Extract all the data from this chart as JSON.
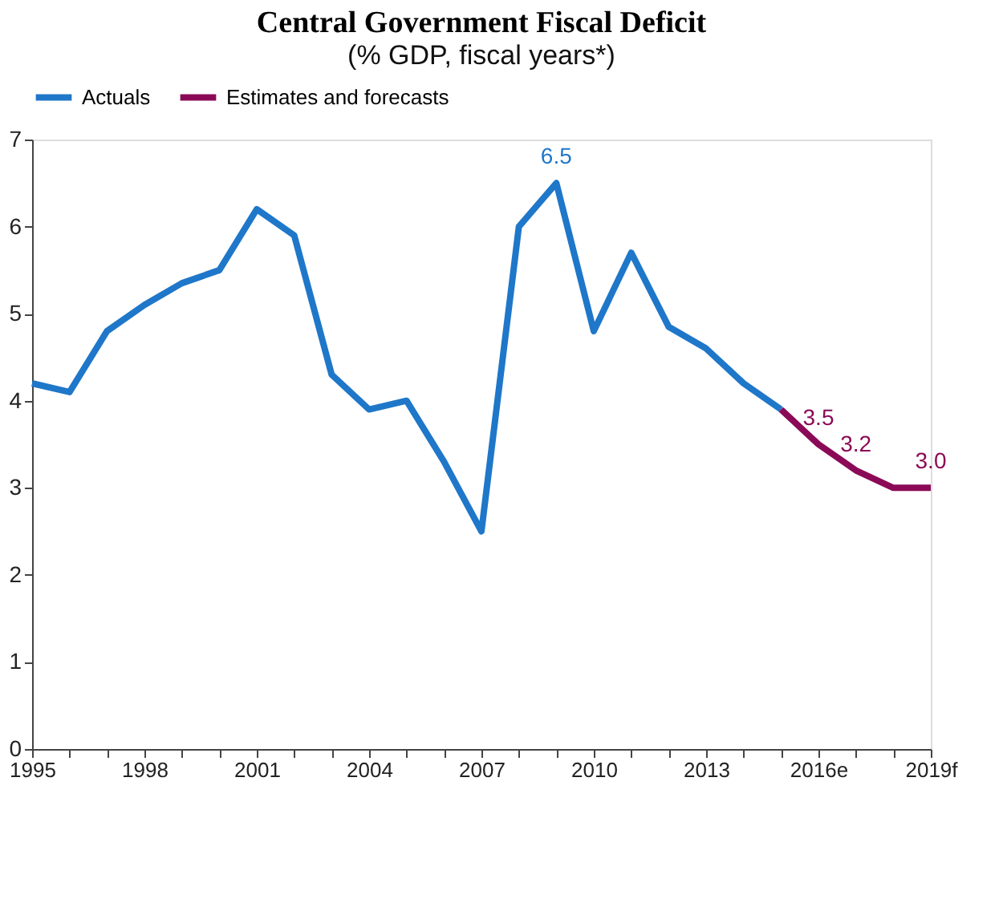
{
  "chart_data": {
    "type": "line",
    "title": "Central Government Fiscal Deficit",
    "subtitle": "(% GDP, fiscal years*)",
    "categories": [
      "1995",
      null,
      null,
      "1998",
      null,
      null,
      "2001",
      null,
      null,
      "2004",
      null,
      null,
      "2007",
      null,
      null,
      "2010",
      null,
      null,
      "2013",
      null,
      null,
      "2016e",
      null,
      null,
      "2019f"
    ],
    "series": [
      {
        "name": "Actuals",
        "color": "#1f77c9",
        "values": [
          4.2,
          4.1,
          4.8,
          5.1,
          5.35,
          5.5,
          6.2,
          5.9,
          4.3,
          3.9,
          4.0,
          3.3,
          2.5,
          6.0,
          6.5,
          4.8,
          5.7,
          4.85,
          4.6,
          4.2,
          3.9,
          null,
          null,
          null,
          null
        ],
        "value_labels": [
          null,
          null,
          null,
          null,
          null,
          null,
          null,
          null,
          null,
          null,
          null,
          null,
          null,
          null,
          "6.5",
          null,
          null,
          null,
          null,
          null,
          null,
          null,
          null,
          null,
          null
        ]
      },
      {
        "name": "Estimates and forecasts",
        "color": "#8b0a57",
        "values": [
          null,
          null,
          null,
          null,
          null,
          null,
          null,
          null,
          null,
          null,
          null,
          null,
          null,
          null,
          null,
          null,
          null,
          null,
          null,
          null,
          3.9,
          3.5,
          3.2,
          3.0,
          3.0
        ],
        "value_labels": [
          null,
          null,
          null,
          null,
          null,
          null,
          null,
          null,
          null,
          null,
          null,
          null,
          null,
          null,
          null,
          null,
          null,
          null,
          null,
          null,
          null,
          "3.5",
          "3.2",
          null,
          "3.0"
        ]
      }
    ],
    "ylim": [
      0,
      7
    ],
    "yticks": [
      0,
      1,
      2,
      3,
      4,
      5,
      6,
      7
    ],
    "grid": false,
    "legend": "top",
    "marker": "none",
    "line_style": "solid"
  }
}
